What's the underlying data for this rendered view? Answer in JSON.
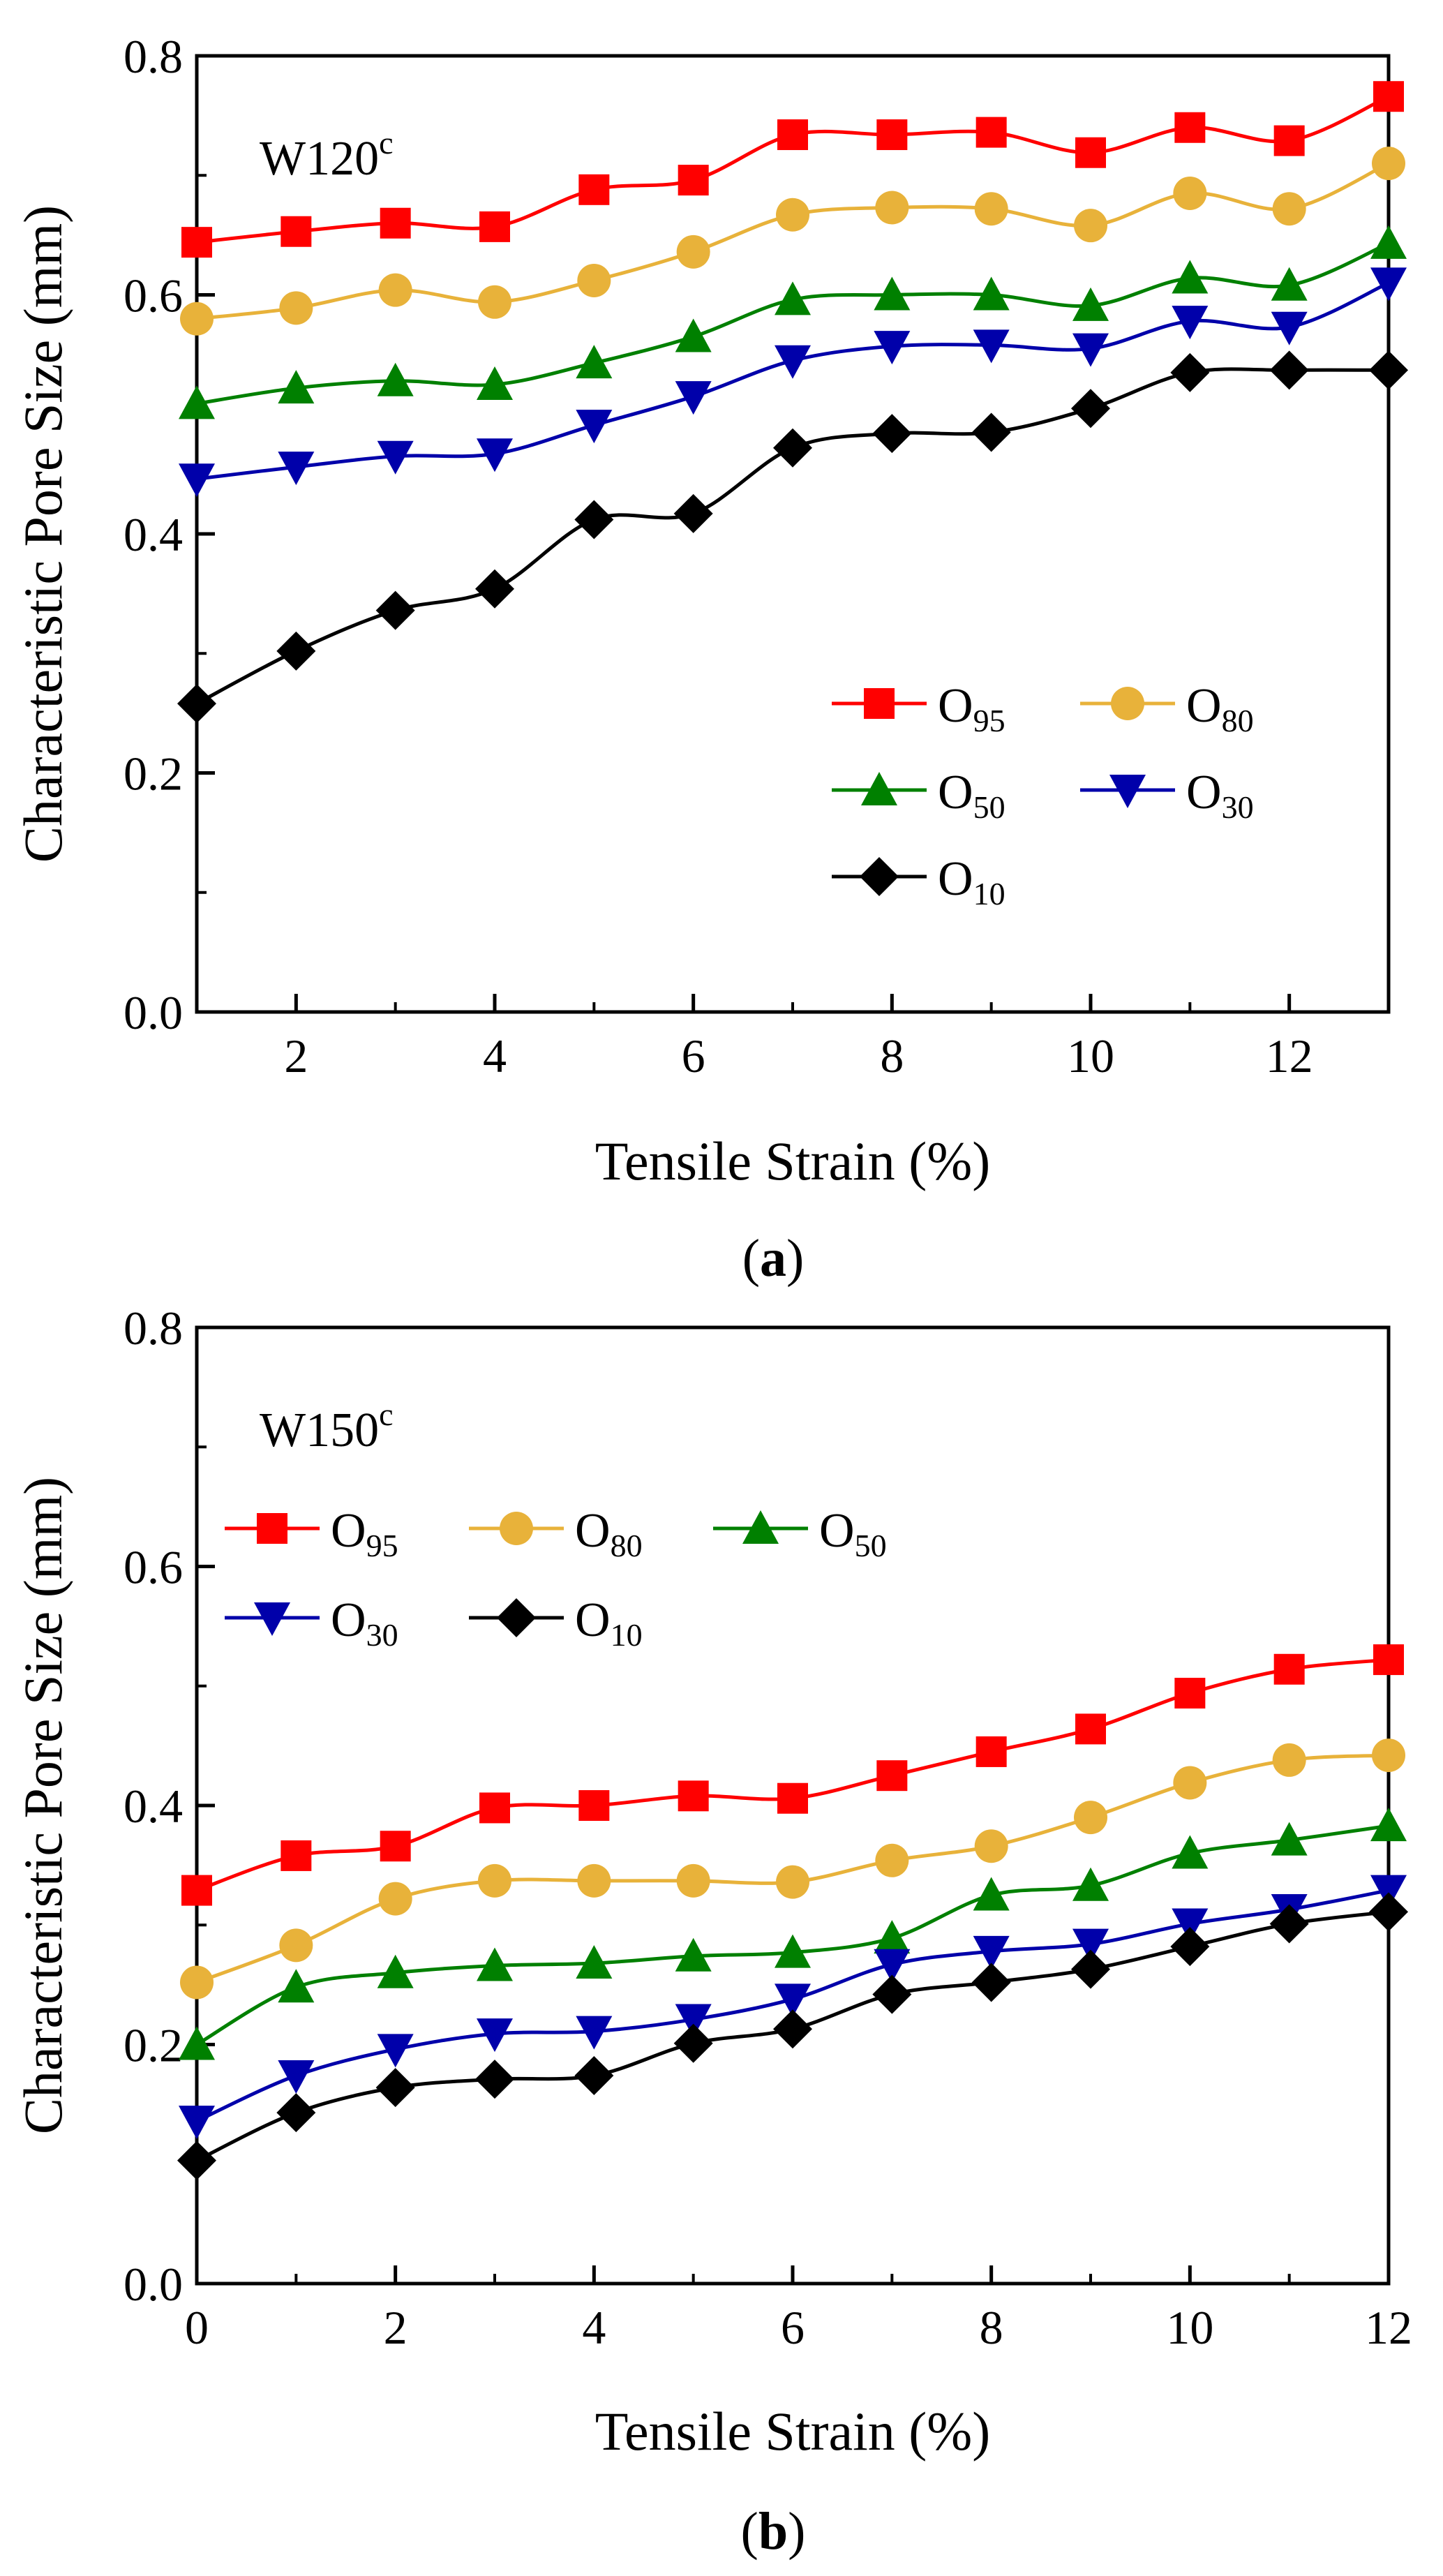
{
  "chart_data": [
    {
      "id": "a",
      "type": "line",
      "annotation": "W120",
      "annotation_sup": "c",
      "caption_open": "(",
      "caption_letter": "a",
      "caption_close": ")",
      "xlabel": "Tensile Strain (%)",
      "ylabel": "Characteristic Pore Size (mm)",
      "xlim": [
        1,
        13
      ],
      "ylim": [
        0,
        0.8
      ],
      "xticks": [
        2,
        4,
        6,
        8,
        10,
        12
      ],
      "yticks": [
        0.0,
        0.2,
        0.4,
        0.6,
        0.8
      ],
      "ytick_labels": [
        "0.0",
        "0.2",
        "0.4",
        "0.6",
        "0.8"
      ],
      "legend_position": "center-right",
      "legend_columns": 2,
      "x": [
        1,
        2,
        3,
        4,
        5,
        6,
        7,
        8,
        9,
        10,
        11,
        12,
        13
      ],
      "series": [
        {
          "name": "O",
          "sub": "95",
          "color": "#ff0000",
          "marker": "square",
          "values": [
            0.644,
            0.653,
            0.66,
            0.657,
            0.688,
            0.696,
            0.734,
            0.734,
            0.736,
            0.719,
            0.74,
            0.729,
            0.766
          ]
        },
        {
          "name": "O",
          "sub": "80",
          "color": "#e8b23a",
          "marker": "circle",
          "values": [
            0.58,
            0.589,
            0.604,
            0.594,
            0.612,
            0.636,
            0.667,
            0.673,
            0.672,
            0.658,
            0.685,
            0.672,
            0.71
          ]
        },
        {
          "name": "O",
          "sub": "50",
          "color": "#008000",
          "marker": "triangle-up",
          "values": [
            0.509,
            0.522,
            0.528,
            0.525,
            0.543,
            0.565,
            0.596,
            0.6,
            0.6,
            0.591,
            0.614,
            0.608,
            0.643
          ]
        },
        {
          "name": "O",
          "sub": "30",
          "color": "#0000aa",
          "marker": "triangle-down",
          "values": [
            0.446,
            0.456,
            0.465,
            0.467,
            0.491,
            0.515,
            0.545,
            0.557,
            0.558,
            0.555,
            0.578,
            0.573,
            0.61
          ]
        },
        {
          "name": "O",
          "sub": "10",
          "color": "#000000",
          "marker": "diamond",
          "values": [
            0.258,
            0.302,
            0.336,
            0.354,
            0.412,
            0.417,
            0.472,
            0.484,
            0.485,
            0.505,
            0.535,
            0.537,
            0.537
          ]
        }
      ]
    },
    {
      "id": "b",
      "type": "line",
      "annotation": "W150",
      "annotation_sup": "c",
      "caption_open": "(",
      "caption_letter": "b",
      "caption_close": ")",
      "xlabel": "Tensile Strain (%)",
      "ylabel": "Characteristic Pore Size (mm)",
      "xlim": [
        0,
        12
      ],
      "ylim": [
        0,
        0.8
      ],
      "xticks": [
        0,
        2,
        4,
        6,
        8,
        10,
        12
      ],
      "yticks": [
        0.0,
        0.2,
        0.4,
        0.6,
        0.8
      ],
      "ytick_labels": [
        "0.0",
        "0.2",
        "0.4",
        "0.6",
        "0.8"
      ],
      "legend_position": "top-left",
      "legend_columns": 3,
      "x": [
        0,
        1,
        2,
        3,
        4,
        5,
        6,
        7,
        8,
        9,
        10,
        11,
        12
      ],
      "series": [
        {
          "name": "O",
          "sub": "95",
          "color": "#ff0000",
          "marker": "square",
          "values": [
            0.329,
            0.358,
            0.366,
            0.398,
            0.4,
            0.408,
            0.406,
            0.425,
            0.445,
            0.464,
            0.494,
            0.514,
            0.522
          ]
        },
        {
          "name": "O",
          "sub": "80",
          "color": "#e8b23a",
          "marker": "circle",
          "values": [
            0.252,
            0.283,
            0.322,
            0.337,
            0.337,
            0.337,
            0.336,
            0.354,
            0.366,
            0.39,
            0.419,
            0.438,
            0.442
          ]
        },
        {
          "name": "O",
          "sub": "50",
          "color": "#008000",
          "marker": "triangle-up",
          "values": [
            0.2,
            0.248,
            0.26,
            0.266,
            0.268,
            0.274,
            0.277,
            0.289,
            0.325,
            0.333,
            0.36,
            0.371,
            0.383
          ]
        },
        {
          "name": "O",
          "sub": "30",
          "color": "#0000aa",
          "marker": "triangle-down",
          "values": [
            0.136,
            0.174,
            0.196,
            0.209,
            0.211,
            0.221,
            0.238,
            0.267,
            0.278,
            0.284,
            0.301,
            0.313,
            0.329
          ]
        },
        {
          "name": "O",
          "sub": "10",
          "color": "#000000",
          "marker": "diamond",
          "values": [
            0.103,
            0.143,
            0.164,
            0.171,
            0.174,
            0.201,
            0.213,
            0.242,
            0.252,
            0.263,
            0.282,
            0.301,
            0.311
          ]
        }
      ]
    }
  ]
}
